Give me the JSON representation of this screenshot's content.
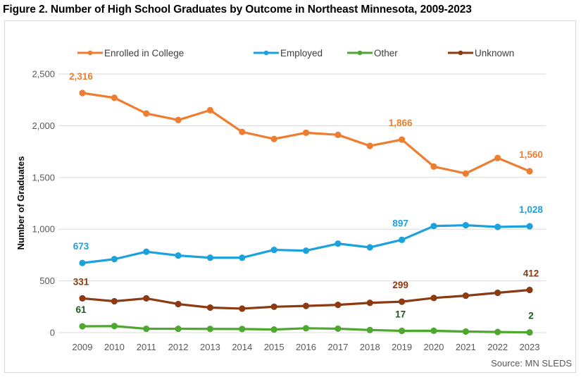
{
  "chart_data": {
    "type": "line",
    "title": "Figure 2. Number of High School Graduates by Outcome in Northeast Minnesota, 2009-2023",
    "xlabel": "",
    "ylabel": "Number of Graduates",
    "ylim": [
      0,
      2500
    ],
    "yticks": [
      0,
      500,
      1000,
      1500,
      2000,
      2500
    ],
    "ytick_labels": [
      "0",
      "500",
      "1,000",
      "1,500",
      "2,000",
      "2,500"
    ],
    "grid": true,
    "legend_position": "top",
    "x": [
      "2009",
      "2010",
      "2011",
      "2012",
      "2013",
      "2014",
      "2015",
      "2016",
      "2017",
      "2018",
      "2019",
      "2020",
      "2021",
      "2022",
      "2023"
    ],
    "series": [
      {
        "name": "Enrolled in College",
        "color": "#ED7D31",
        "values": [
          2316,
          2270,
          2118,
          2055,
          2150,
          1940,
          1872,
          1932,
          1912,
          1805,
          1866,
          1605,
          1538,
          1688,
          1560
        ],
        "labels": [
          {
            "index": 0,
            "text": "2,316"
          },
          {
            "index": 10,
            "text": "1,866"
          },
          {
            "index": 14,
            "text": "1,560"
          }
        ]
      },
      {
        "name": "Employed",
        "color": "#1BA1DC",
        "values": [
          673,
          710,
          782,
          745,
          724,
          724,
          800,
          792,
          860,
          824,
          897,
          1030,
          1038,
          1022,
          1028
        ],
        "labels": [
          {
            "index": 0,
            "text": "673"
          },
          {
            "index": 10,
            "text": "897"
          },
          {
            "index": 14,
            "text": "1,028"
          }
        ]
      },
      {
        "name": "Other",
        "color": "#4EA72E",
        "label_color": "#1E5C22",
        "values": [
          61,
          63,
          37,
          37,
          36,
          35,
          30,
          42,
          38,
          25,
          17,
          18,
          10,
          6,
          2
        ],
        "labels": [
          {
            "index": 0,
            "text": "61"
          },
          {
            "index": 10,
            "text": "17"
          },
          {
            "index": 14,
            "text": "2"
          }
        ]
      },
      {
        "name": "Unknown",
        "color": "#8B3A12",
        "values": [
          331,
          303,
          331,
          276,
          242,
          232,
          250,
          258,
          268,
          288,
          299,
          335,
          357,
          385,
          412
        ],
        "labels": [
          {
            "index": 0,
            "text": "331"
          },
          {
            "index": 10,
            "text": "299"
          },
          {
            "index": 14,
            "text": "412"
          }
        ]
      }
    ],
    "source": "Source: MN SLEDS"
  }
}
